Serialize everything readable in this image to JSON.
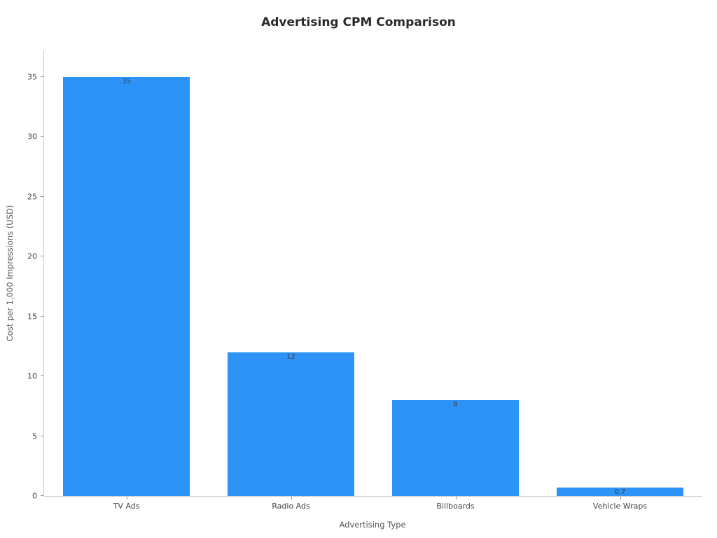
{
  "chart_data": {
    "type": "bar",
    "title": "Advertising CPM Comparison",
    "xlabel": "Advertising Type",
    "ylabel": "Cost per 1,000 Impressions (USD)",
    "categories": [
      "TV Ads",
      "Radio Ads",
      "Billboards",
      "Vehicle Wraps"
    ],
    "values": [
      35,
      12,
      8,
      0.7
    ],
    "value_labels": [
      "35",
      "12",
      "8",
      "0.7"
    ],
    "ylim": [
      0,
      37.2
    ],
    "yticks": [
      0,
      5,
      10,
      15,
      20,
      25,
      30,
      35
    ],
    "grid": false,
    "legend": false,
    "bar_color": "#2e93f7",
    "background": "#ffffff",
    "bar_width_fraction": 0.77
  }
}
